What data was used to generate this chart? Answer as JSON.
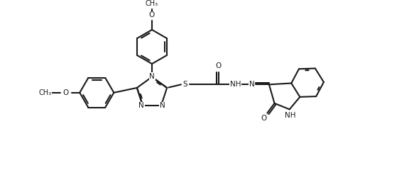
{
  "background_color": "#ffffff",
  "line_color": "#1a1a1a",
  "line_width": 1.5,
  "font_size": 7.5,
  "figsize": [
    5.76,
    2.64
  ],
  "dpi": 100,
  "xlim": [
    -0.5,
    10.5
  ],
  "ylim": [
    0.2,
    5.8
  ]
}
